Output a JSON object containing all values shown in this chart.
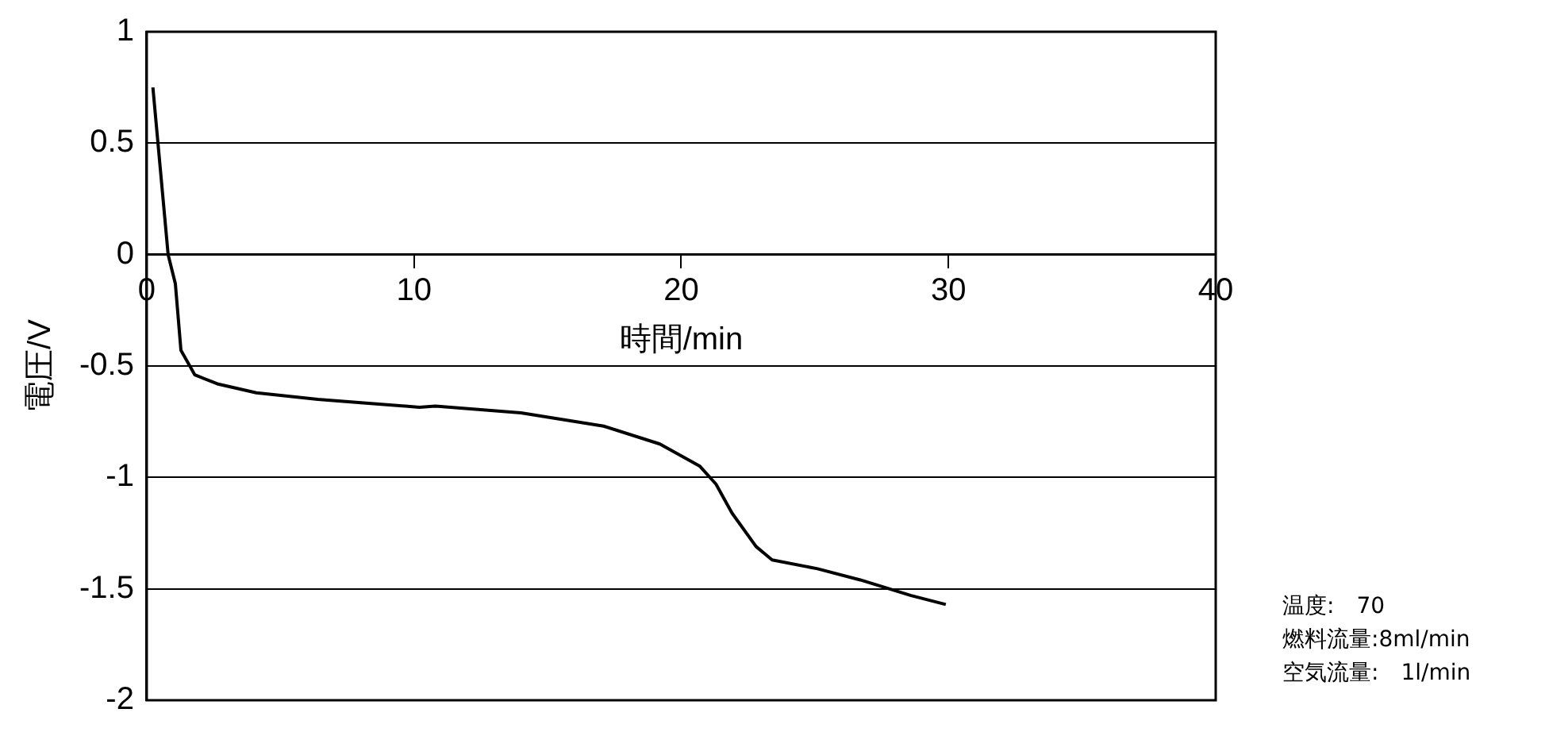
{
  "chart_data": {
    "type": "line",
    "xlabel": "時間/min",
    "ylabel": "電圧/V",
    "annotations": [
      "温度:　70",
      "燃料流量:8ml/min",
      "空気流量:　1l/min"
    ],
    "xlim": [
      0,
      40
    ],
    "xticks": [
      0,
      10,
      20,
      30,
      40
    ],
    "ylim": [
      -2,
      1
    ],
    "yticks": [
      -2,
      -1.5,
      -1,
      -0.5,
      0,
      0.5,
      1
    ],
    "grid": "y",
    "legend": false,
    "marker": "none",
    "line_style": "solid",
    "series": [
      {
        "color": "#000000",
        "x": [
          0.23,
          0.8,
          1.07,
          1.28,
          1.8,
          2.64,
          4.1,
          6.4,
          10.2,
          10.8,
          14,
          17.1,
          19.2,
          20.7,
          21.3,
          21.9,
          22.8,
          23.4,
          25.1,
          26.7,
          28.6,
          29.9
        ],
        "values": [
          0.75,
          0,
          -0.13,
          -0.43,
          -0.54,
          -0.58,
          -0.62,
          -0.65,
          -0.685,
          -0.68,
          -0.71,
          -0.77,
          -0.85,
          -0.95,
          -1.03,
          -1.16,
          -1.31,
          -1.37,
          -1.41,
          -1.46,
          -1.53,
          -1.57
        ]
      }
    ]
  }
}
